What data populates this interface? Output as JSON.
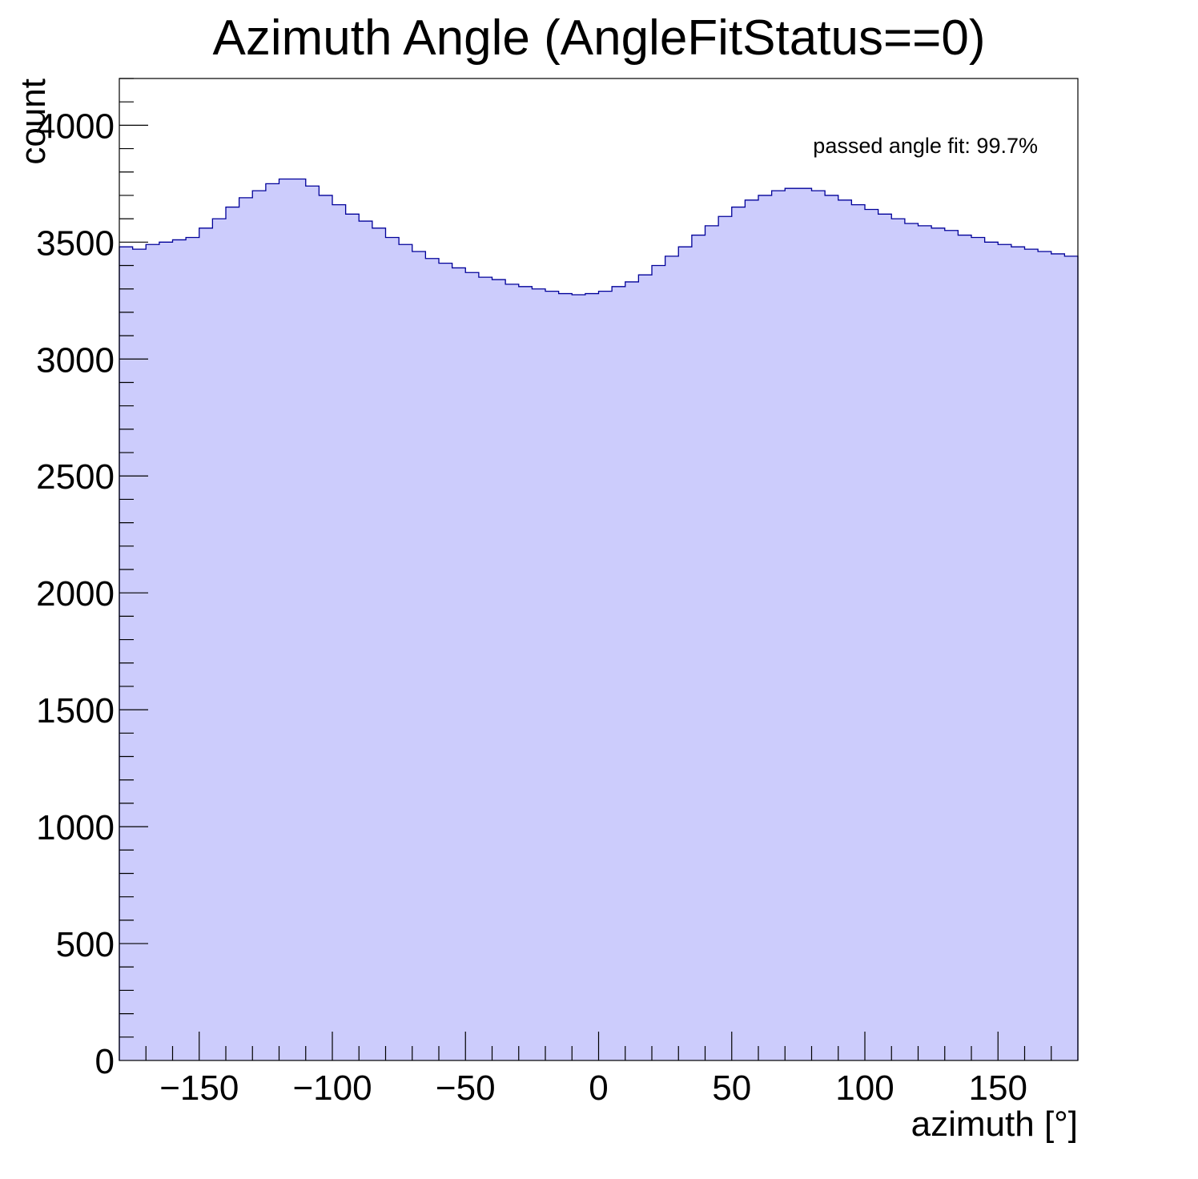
{
  "chart_data": {
    "type": "bar",
    "title": "Azimuth Angle (AngleFitStatus==0)",
    "xlabel": "azimuth [°]",
    "ylabel": "count",
    "xlim": [
      -180,
      180
    ],
    "ylim": [
      0,
      4200
    ],
    "x_ticks": [
      -150,
      -100,
      -50,
      0,
      50,
      100,
      150
    ],
    "x_tick_labels": [
      "−150",
      "−100",
      "−50",
      "0",
      "50",
      "100",
      "150"
    ],
    "y_ticks": [
      0,
      500,
      1000,
      1500,
      2000,
      2500,
      3000,
      3500,
      4000
    ],
    "y_tick_labels": [
      "0",
      "500",
      "1000",
      "1500",
      "2000",
      "2500",
      "3000",
      "3500",
      "4000"
    ],
    "annotation": "passed angle fit: 99.7%",
    "grid": false,
    "legend": "none",
    "fill_color": "#ccccfc",
    "line_color": "#000099",
    "bin_width": 5,
    "bin_centers": [
      -177.5,
      -172.5,
      -167.5,
      -162.5,
      -157.5,
      -152.5,
      -147.5,
      -142.5,
      -137.5,
      -132.5,
      -127.5,
      -122.5,
      -117.5,
      -112.5,
      -107.5,
      -102.5,
      -97.5,
      -92.5,
      -87.5,
      -82.5,
      -77.5,
      -72.5,
      -67.5,
      -62.5,
      -57.5,
      -52.5,
      -47.5,
      -42.5,
      -37.5,
      -32.5,
      -27.5,
      -22.5,
      -17.5,
      -12.5,
      -7.5,
      -2.5,
      2.5,
      7.5,
      12.5,
      17.5,
      22.5,
      27.5,
      32.5,
      37.5,
      42.5,
      47.5,
      52.5,
      57.5,
      62.5,
      67.5,
      72.5,
      77.5,
      82.5,
      87.5,
      92.5,
      97.5,
      102.5,
      107.5,
      112.5,
      117.5,
      122.5,
      127.5,
      132.5,
      137.5,
      142.5,
      147.5,
      152.5,
      157.5,
      162.5,
      167.5,
      172.5,
      177.5
    ],
    "values": [
      3480,
      3470,
      3490,
      3500,
      3510,
      3520,
      3560,
      3600,
      3650,
      3690,
      3720,
      3750,
      3770,
      3770,
      3740,
      3700,
      3660,
      3620,
      3590,
      3560,
      3520,
      3490,
      3460,
      3430,
      3410,
      3390,
      3370,
      3350,
      3340,
      3320,
      3310,
      3300,
      3290,
      3280,
      3275,
      3280,
      3290,
      3310,
      3330,
      3360,
      3400,
      3440,
      3480,
      3530,
      3570,
      3610,
      3650,
      3680,
      3700,
      3720,
      3730,
      3730,
      3720,
      3700,
      3680,
      3660,
      3640,
      3620,
      3600,
      3580,
      3570,
      3560,
      3550,
      3530,
      3520,
      3500,
      3490,
      3480,
      3470,
      3460,
      3450,
      3440
    ]
  }
}
